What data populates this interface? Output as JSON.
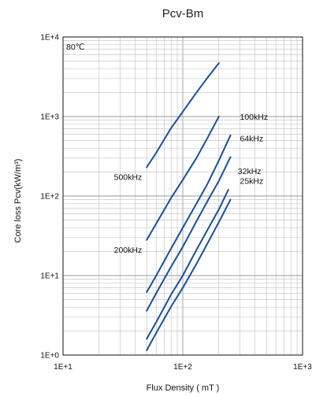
{
  "chart_data": {
    "type": "line",
    "title": "Pcv-Bm",
    "xlabel": "Flux Density ( mT )",
    "ylabel": "Core loss Pcv(kW/m³)",
    "x_scale": "log",
    "y_scale": "log",
    "xlim": [
      10,
      1000
    ],
    "ylim": [
      1,
      10000
    ],
    "x_tick_labels": [
      "1E+1",
      "1E+2",
      "1E+3"
    ],
    "y_tick_labels": [
      "1E+0",
      "1E+1",
      "1E+2",
      "1E+3",
      "1E+4"
    ],
    "grid": true,
    "annotation": "80℃",
    "line_color": "#1a4f96",
    "series": [
      {
        "name": "500kHz",
        "x": [
          50,
          60,
          80,
          100,
          130,
          160,
          200
        ],
        "y": [
          230,
          350,
          720,
          1150,
          2000,
          3050,
          4700
        ]
      },
      {
        "name": "200kHz",
        "x": [
          50,
          60,
          80,
          100,
          130,
          160,
          200
        ],
        "y": [
          28,
          45,
          95,
          160,
          300,
          530,
          1000
        ]
      },
      {
        "name": "100kHz",
        "x": [
          50,
          60,
          80,
          100,
          130,
          160,
          200,
          250
        ],
        "y": [
          6.2,
          10,
          22,
          40,
          80,
          140,
          280,
          580
        ]
      },
      {
        "name": "64kHz",
        "x": [
          50,
          60,
          80,
          100,
          130,
          160,
          200,
          250
        ],
        "y": [
          3.6,
          6,
          13,
          23,
          48,
          85,
          155,
          310
        ]
      },
      {
        "name": "32kHz",
        "x": [
          50,
          60,
          80,
          100,
          130,
          160,
          200,
          240
        ],
        "y": [
          1.6,
          2.6,
          5.8,
          10,
          21,
          37,
          68,
          120
        ]
      },
      {
        "name": "25kHz",
        "x": [
          50,
          60,
          80,
          100,
          130,
          160,
          200,
          250
        ],
        "y": [
          1.15,
          1.9,
          4.1,
          7,
          14,
          25,
          47,
          90
        ]
      }
    ]
  }
}
